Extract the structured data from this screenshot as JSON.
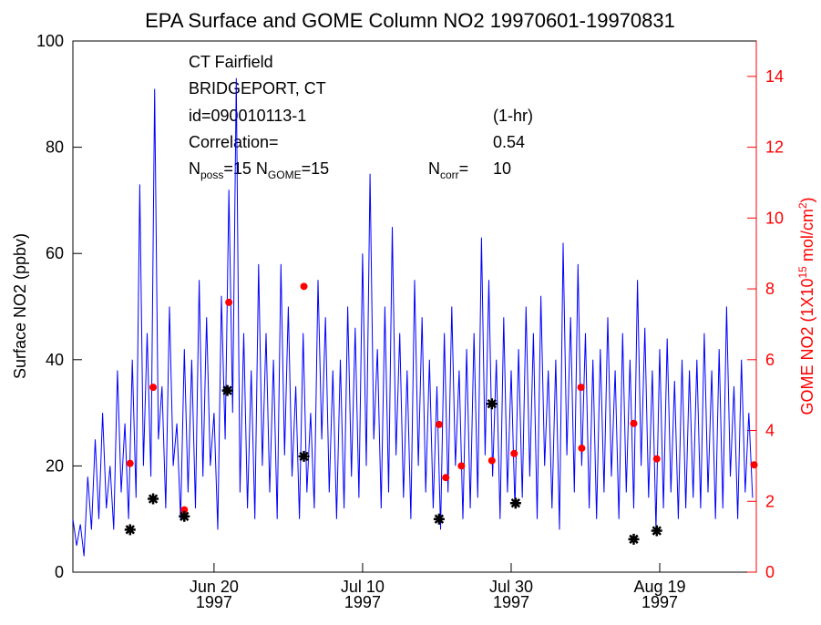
{
  "chart_data": {
    "type": "line",
    "title": "EPA Surface and GOME Column NO2 19970601-19970831",
    "ylabel": "Surface NO2 (ppbv)",
    "y2label": [
      "GOME NO2 (1X10",
      "15",
      " mol/cm",
      "2",
      ")"
    ],
    "annotations": [
      [
        "CT Fairfield"
      ],
      [
        "BRIDGEPORT, CT"
      ],
      [
        "id=090010113-1"
      ],
      [
        "(1-hr)"
      ],
      [
        "Correlation="
      ],
      [
        "0.54"
      ],
      [
        "N",
        "poss",
        "=15 N",
        "GOME",
        "=15"
      ],
      [
        "N",
        "corr",
        "="
      ],
      [
        "10"
      ]
    ],
    "xlim": [
      1,
      93
    ],
    "xticks": [
      {
        "value": 20,
        "label": "Jun 20\n1997"
      },
      {
        "value": 40,
        "label": "Jul 10\n1997"
      },
      {
        "value": 60,
        "label": "Jul 30\n1997"
      },
      {
        "value": 80,
        "label": "Aug 19\n1997"
      }
    ],
    "ylim": [
      0,
      100
    ],
    "yticks": [
      0,
      20,
      40,
      60,
      80,
      100
    ],
    "y2lim": [
      0,
      15
    ],
    "y2ticks": [
      0,
      2,
      4,
      6,
      8,
      10,
      12,
      14
    ],
    "y2color": "#ff0000",
    "series": [
      {
        "type": "line",
        "color": "#0000ff",
        "x": [
          1,
          1.5,
          2,
          2.5,
          3,
          3.5,
          4,
          4.5,
          5,
          5.5,
          6,
          6.5,
          7,
          7.5,
          8,
          8.5,
          9,
          9.5,
          10,
          10.5,
          11,
          11.5,
          12,
          12.5,
          13,
          13.5,
          14,
          14.5,
          15,
          15.5,
          16,
          16.5,
          17,
          17.5,
          18,
          18.5,
          19,
          19.5,
          20,
          20.5,
          21,
          21.5,
          22,
          22.5,
          23,
          23.5,
          24,
          24.5,
          25,
          25.5,
          26,
          26.5,
          27,
          27.5,
          28,
          28.5,
          29,
          29.5,
          30,
          30.5,
          31,
          31.5,
          32,
          32.5,
          33,
          33.5,
          34,
          34.5,
          35,
          35.5,
          36,
          36.5,
          37,
          37.5,
          38,
          38.5,
          39,
          39.5,
          40,
          40.5,
          41,
          41.5,
          42,
          42.5,
          43,
          43.5,
          44,
          44.5,
          45,
          45.5,
          46,
          46.5,
          47,
          47.5,
          48,
          48.5,
          49,
          49.5,
          50,
          50.5,
          51,
          51.5,
          52,
          52.5,
          53,
          53.5,
          54,
          54.5,
          55,
          55.5,
          56,
          56.5,
          57,
          57.5,
          58,
          58.5,
          59,
          59.5,
          60,
          60.5,
          61,
          61.5,
          62,
          62.5,
          63,
          63.5,
          64,
          64.5,
          65,
          65.5,
          66,
          66.5,
          67,
          67.5,
          68,
          68.5,
          69,
          69.5,
          70,
          70.5,
          71,
          71.5,
          72,
          72.5,
          73,
          73.5,
          74,
          74.5,
          75,
          75.5,
          76,
          76.5,
          77,
          77.5,
          78,
          78.5,
          79,
          79.5,
          80,
          80.5,
          81,
          81.5,
          82,
          82.5,
          83,
          83.5,
          84,
          84.5,
          85,
          85.5,
          86,
          86.5,
          87,
          87.5,
          88,
          88.5,
          89,
          89.5,
          90,
          90.5,
          91,
          91.5,
          92,
          92.5
        ],
        "values": [
          10,
          5,
          9,
          3,
          18,
          8,
          25,
          10,
          30,
          12,
          20,
          8,
          38,
          15,
          28,
          10,
          40,
          14,
          73,
          20,
          45,
          18,
          91,
          25,
          35,
          12,
          50,
          20,
          28,
          10,
          42,
          15,
          40,
          12,
          55,
          18,
          48,
          20,
          30,
          8,
          52,
          25,
          72,
          30,
          93,
          15,
          45,
          12,
          38,
          10,
          58,
          20,
          45,
          15,
          40,
          10,
          58,
          22,
          50,
          18,
          35,
          10,
          45,
          15,
          30,
          12,
          55,
          25,
          48,
          15,
          38,
          10,
          40,
          12,
          50,
          18,
          46,
          14,
          60,
          20,
          75,
          25,
          42,
          12,
          50,
          15,
          65,
          22,
          45,
          14,
          38,
          10,
          55,
          20,
          48,
          15,
          40,
          12,
          35,
          8,
          45,
          15,
          50,
          20,
          38,
          10,
          42,
          12,
          45,
          14,
          63,
          22,
          55,
          18,
          40,
          10,
          48,
          15,
          38,
          12,
          42,
          14,
          50,
          18,
          45,
          10,
          52,
          20,
          38,
          12,
          40,
          8,
          62,
          22,
          48,
          15,
          58,
          20,
          45,
          12,
          40,
          10,
          42,
          15,
          48,
          18,
          38,
          10,
          45,
          15,
          40,
          12,
          55,
          20,
          46,
          14,
          38,
          8,
          42,
          12,
          44,
          15,
          36,
          10,
          40,
          12,
          38,
          14,
          40,
          12,
          45,
          15,
          38,
          10,
          42,
          12,
          50,
          18,
          35,
          10,
          40,
          15,
          30,
          14
        ]
      },
      {
        "type": "scatter",
        "marker": "dot",
        "axis": "y2",
        "color": "#ff0000",
        "x": [
          8.7,
          11.8,
          16.0,
          22.0,
          32.1,
          50.3,
          51.2,
          53.3,
          57.4,
          60.4,
          69.4,
          69.5,
          76.5,
          79.6,
          92.7
        ],
        "values": [
          3.07,
          5.22,
          1.76,
          7.62,
          8.07,
          4.17,
          2.67,
          3.0,
          3.15,
          3.35,
          5.22,
          3.5,
          4.2,
          3.2,
          3.03
        ]
      },
      {
        "type": "scatter",
        "marker": "asterisk",
        "color": "#000000",
        "x": [
          8.7,
          11.8,
          16.0,
          21.8,
          32.1,
          50.3,
          57.4,
          60.6,
          76.5,
          79.6
        ],
        "values": [
          8,
          13.8,
          10.5,
          34.2,
          21.8,
          10,
          31.7,
          13,
          6.2,
          7.8
        ]
      }
    ]
  }
}
